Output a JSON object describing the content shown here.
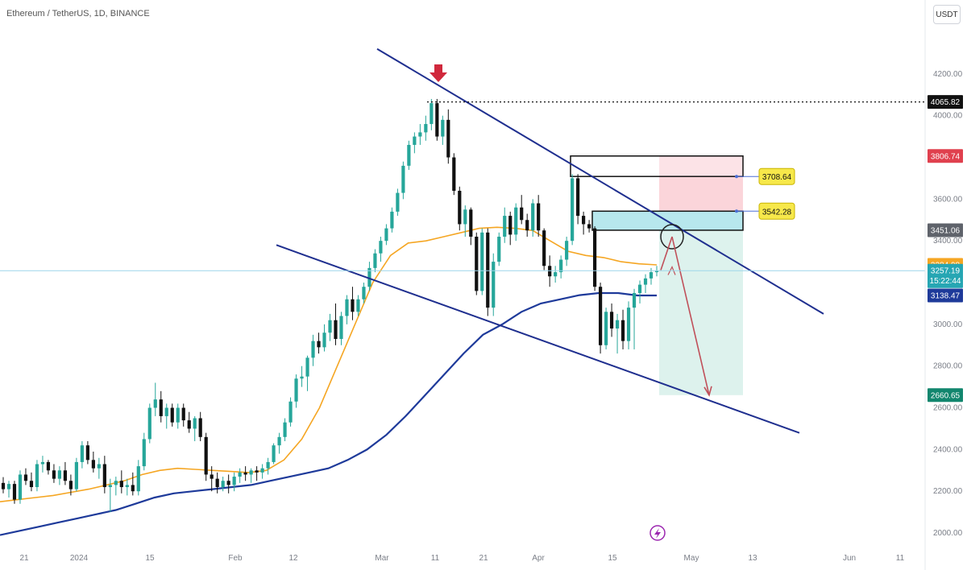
{
  "header": {
    "symbol_title": "Ethereum / TetherUS, 1D, BINANCE",
    "quote_currency": "USDT"
  },
  "colors": {
    "up": "#26a69a",
    "down": "#111111",
    "ma_short": "#f5a623",
    "ma_long": "#1e3a9a",
    "trendline": "#1f2f8f",
    "arrow_marker": "#d0283c",
    "projection": "#c0505a",
    "stop_zone": "#f9c7cd",
    "target_zone": "#d4efe8",
    "entry_zone": "#9fdfe7"
  },
  "chart_data": {
    "type": "candlestick",
    "y_axis": {
      "ylim": [
        1950,
        4400
      ],
      "ticks": [
        "4200.00",
        "4000.00",
        "3800.00",
        "3600.00",
        "3400.00",
        "3200.00",
        "3000.00",
        "2800.00",
        "2600.00",
        "2400.00",
        "2200.00",
        "2000.00"
      ]
    },
    "x_axis": {
      "tick_labels": [
        "21",
        "2024",
        "15",
        "Feb",
        "12",
        "Mar",
        "11",
        "21",
        "Apr",
        "15",
        "May",
        "13",
        "Jun",
        "11"
      ]
    },
    "candles_ohlc": [
      [
        2240,
        2268,
        2190,
        2210
      ],
      [
        2210,
        2250,
        2170,
        2235
      ],
      [
        2235,
        2250,
        2140,
        2160
      ],
      [
        2160,
        2300,
        2140,
        2280
      ],
      [
        2280,
        2310,
        2230,
        2250
      ],
      [
        2250,
        2290,
        2200,
        2220
      ],
      [
        2220,
        2350,
        2200,
        2330
      ],
      [
        2330,
        2370,
        2290,
        2340
      ],
      [
        2340,
        2350,
        2280,
        2300
      ],
      [
        2300,
        2330,
        2240,
        2260
      ],
      [
        2260,
        2320,
        2230,
        2300
      ],
      [
        2300,
        2340,
        2230,
        2250
      ],
      [
        2250,
        2280,
        2180,
        2210
      ],
      [
        2210,
        2360,
        2200,
        2340
      ],
      [
        2340,
        2440,
        2310,
        2420
      ],
      [
        2420,
        2440,
        2330,
        2350
      ],
      [
        2350,
        2390,
        2290,
        2310
      ],
      [
        2310,
        2360,
        2260,
        2330
      ],
      [
        2330,
        2370,
        2190,
        2220
      ],
      [
        2220,
        2260,
        2100,
        2230
      ],
      [
        2230,
        2270,
        2180,
        2250
      ],
      [
        2250,
        2300,
        2190,
        2220
      ],
      [
        2220,
        2260,
        2180,
        2230
      ],
      [
        2230,
        2290,
        2180,
        2200
      ],
      [
        2200,
        2350,
        2180,
        2320
      ],
      [
        2320,
        2480,
        2300,
        2450
      ],
      [
        2450,
        2620,
        2430,
        2600
      ],
      [
        2600,
        2720,
        2560,
        2640
      ],
      [
        2640,
        2680,
        2530,
        2560
      ],
      [
        2560,
        2620,
        2500,
        2600
      ],
      [
        2600,
        2620,
        2510,
        2530
      ],
      [
        2530,
        2620,
        2500,
        2600
      ],
      [
        2600,
        2620,
        2510,
        2540
      ],
      [
        2540,
        2580,
        2480,
        2500
      ],
      [
        2500,
        2560,
        2440,
        2550
      ],
      [
        2550,
        2580,
        2440,
        2460
      ],
      [
        2460,
        2480,
        2250,
        2280
      ],
      [
        2280,
        2320,
        2200,
        2260
      ],
      [
        2260,
        2290,
        2190,
        2220
      ],
      [
        2220,
        2270,
        2200,
        2250
      ],
      [
        2250,
        2280,
        2190,
        2230
      ],
      [
        2230,
        2290,
        2200,
        2270
      ],
      [
        2270,
        2310,
        2240,
        2290
      ],
      [
        2290,
        2320,
        2250,
        2280
      ],
      [
        2280,
        2310,
        2240,
        2300
      ],
      [
        2300,
        2320,
        2250,
        2290
      ],
      [
        2290,
        2330,
        2260,
        2310
      ],
      [
        2310,
        2360,
        2280,
        2340
      ],
      [
        2340,
        2430,
        2330,
        2420
      ],
      [
        2420,
        2480,
        2380,
        2460
      ],
      [
        2460,
        2550,
        2440,
        2530
      ],
      [
        2530,
        2650,
        2510,
        2630
      ],
      [
        2630,
        2760,
        2600,
        2740
      ],
      [
        2740,
        2800,
        2700,
        2750
      ],
      [
        2750,
        2850,
        2680,
        2840
      ],
      [
        2840,
        2950,
        2800,
        2920
      ],
      [
        2920,
        2960,
        2860,
        2890
      ],
      [
        2890,
        3000,
        2870,
        2960
      ],
      [
        2960,
        3050,
        2920,
        3020
      ],
      [
        3020,
        3100,
        2900,
        2930
      ],
      [
        2930,
        3060,
        2900,
        3040
      ],
      [
        3040,
        3140,
        3000,
        3120
      ],
      [
        3120,
        3180,
        3020,
        3060
      ],
      [
        3060,
        3140,
        3040,
        3120
      ],
      [
        3120,
        3200,
        3100,
        3180
      ],
      [
        3180,
        3300,
        3160,
        3270
      ],
      [
        3270,
        3360,
        3250,
        3340
      ],
      [
        3340,
        3420,
        3300,
        3400
      ],
      [
        3400,
        3480,
        3380,
        3460
      ],
      [
        3460,
        3560,
        3440,
        3540
      ],
      [
        3540,
        3650,
        3520,
        3630
      ],
      [
        3630,
        3780,
        3600,
        3760
      ],
      [
        3760,
        3880,
        3740,
        3860
      ],
      [
        3860,
        3920,
        3820,
        3900
      ],
      [
        3900,
        3960,
        3860,
        3920
      ],
      [
        3920,
        4000,
        3880,
        3960
      ],
      [
        3960,
        4080,
        3930,
        4060
      ],
      [
        4060,
        4080,
        3880,
        3900
      ],
      [
        3900,
        4000,
        3860,
        3980
      ],
      [
        3980,
        4030,
        3770,
        3800
      ],
      [
        3800,
        3820,
        3620,
        3640
      ],
      [
        3640,
        3660,
        3450,
        3480
      ],
      [
        3480,
        3570,
        3420,
        3550
      ],
      [
        3550,
        3560,
        3380,
        3420
      ],
      [
        3420,
        3440,
        3140,
        3160
      ],
      [
        3160,
        3460,
        3140,
        3440
      ],
      [
        3440,
        3460,
        3040,
        3080
      ],
      [
        3080,
        3340,
        3040,
        3300
      ],
      [
        3300,
        3440,
        3280,
        3420
      ],
      [
        3420,
        3560,
        3390,
        3520
      ],
      [
        3520,
        3540,
        3380,
        3430
      ],
      [
        3430,
        3580,
        3400,
        3560
      ],
      [
        3560,
        3620,
        3480,
        3500
      ],
      [
        3500,
        3530,
        3420,
        3450
      ],
      [
        3450,
        3600,
        3420,
        3580
      ],
      [
        3580,
        3620,
        3420,
        3450
      ],
      [
        3450,
        3460,
        3260,
        3280
      ],
      [
        3280,
        3330,
        3180,
        3230
      ],
      [
        3230,
        3280,
        3200,
        3250
      ],
      [
        3250,
        3330,
        3220,
        3310
      ],
      [
        3310,
        3420,
        3280,
        3400
      ],
      [
        3400,
        3720,
        3380,
        3700
      ],
      [
        3700,
        3720,
        3480,
        3520
      ],
      [
        3520,
        3540,
        3430,
        3480
      ],
      [
        3480,
        3500,
        3440,
        3460
      ],
      [
        3460,
        3470,
        3160,
        3180
      ],
      [
        3180,
        3200,
        2860,
        2900
      ],
      [
        2900,
        3080,
        2880,
        3060
      ],
      [
        3060,
        3100,
        2940,
        2980
      ],
      [
        2980,
        3050,
        2860,
        3020
      ],
      [
        3020,
        3070,
        2880,
        2920
      ],
      [
        2920,
        3110,
        2880,
        3080
      ],
      [
        3080,
        3170,
        2880,
        3150
      ],
      [
        3150,
        3210,
        3100,
        3190
      ],
      [
        3190,
        3240,
        3150,
        3220
      ],
      [
        3220,
        3270,
        3190,
        3250
      ],
      [
        3250,
        3280,
        3230,
        3257.19
      ]
    ],
    "moving_averages": [
      {
        "name": "",
        "values": [
          2150,
          2160,
          2170,
          2180,
          2195,
          2210,
          2230,
          2250,
          2280,
          2300,
          2310,
          2305,
          2300,
          2295,
          2290,
          2300,
          2350,
          2450,
          2600,
          2800,
          3000,
          3200,
          3330,
          3390,
          3400,
          3420,
          3440,
          3460,
          3465,
          3460,
          3450,
          3400,
          3350,
          3330,
          3320,
          3300,
          3290,
          3284.98
        ]
      },
      {
        "name": "",
        "values": [
          1990,
          2010,
          2030,
          2050,
          2070,
          2090,
          2110,
          2140,
          2170,
          2190,
          2200,
          2210,
          2220,
          2230,
          2250,
          2270,
          2290,
          2310,
          2350,
          2400,
          2470,
          2560,
          2660,
          2760,
          2860,
          2950,
          3000,
          3060,
          3100,
          3120,
          3140,
          3150,
          3150,
          3138.47,
          3138.47
        ]
      }
    ],
    "trendlines": [
      {
        "name": "upper",
        "from": [
          "",
          4320
        ],
        "to": [
          "",
          3050
        ]
      },
      {
        "name": "lower",
        "from": [
          "",
          3380
        ],
        "to": [
          "",
          2480
        ]
      }
    ],
    "zones": {
      "stop": {
        "from": 3542.28,
        "to": 3806.74
      },
      "entry_box": {
        "from": 3451.06,
        "to": 3542.28
      },
      "target": {
        "from": 2660.65,
        "to": 3451.06
      }
    },
    "annotations": {
      "high_line": "4065.82",
      "box_label_upper": "3708.64",
      "box_label_lower": "3542.28"
    },
    "price_labels": [
      {
        "value": "4065.82",
        "color": "#111111"
      },
      {
        "value": "3806.74",
        "color": "#e0404e"
      },
      {
        "value": "3451.06",
        "color": "#5f636b"
      },
      {
        "value": "3284.98",
        "color": "#f5a623"
      },
      {
        "value": "3257.19",
        "color": "#26a6b3",
        "extra": "15:22:44"
      },
      {
        "value": "3138.47",
        "color": "#1e3a9a"
      },
      {
        "value": "2660.65",
        "color": "#12866e"
      }
    ],
    "grid": false,
    "legend": "none"
  }
}
